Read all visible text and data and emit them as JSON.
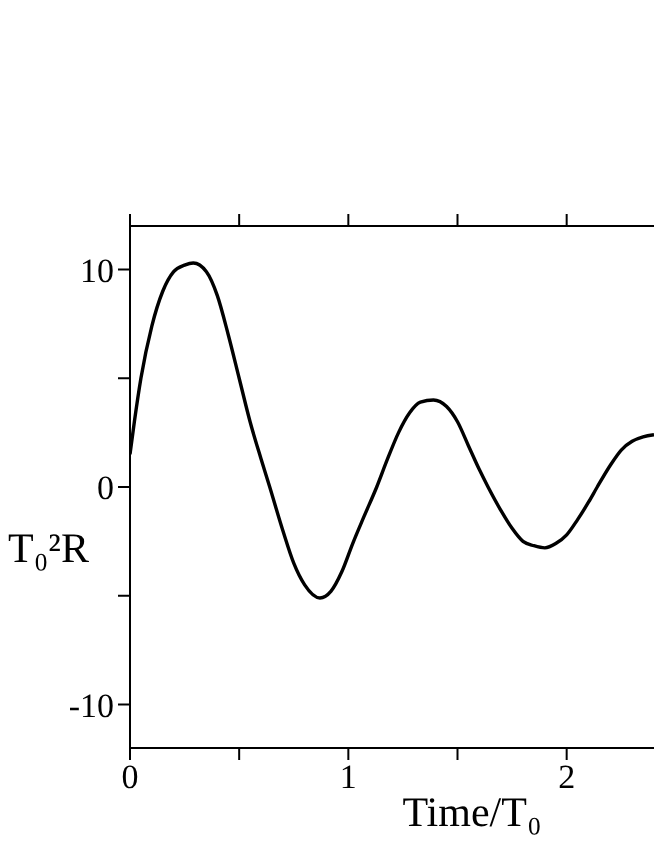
{
  "chart_data": {
    "type": "line",
    "xlabel": "Time/T₀",
    "ylabel": "T₀²R",
    "xlim": [
      0,
      2.4
    ],
    "ylim": [
      -12,
      12
    ],
    "xticks": [
      0,
      {
        "value": 0.5,
        "label": null
      },
      1,
      {
        "value": 1.5,
        "label": null
      },
      2
    ],
    "yticks": [
      -10,
      {
        "value": -5,
        "label": null
      },
      0,
      {
        "value": 5,
        "label": null
      },
      10
    ],
    "grid": false,
    "legend": false,
    "marker": "none",
    "line_style": "solid",
    "x": [
      0,
      0.02,
      0.05,
      0.1,
      0.15,
      0.2,
      0.25,
      0.29,
      0.35,
      0.4,
      0.45,
      0.5,
      0.55,
      0.6,
      0.64,
      0.7,
      0.75,
      0.8,
      0.87,
      0.92,
      0.97,
      1.02,
      1.07,
      1.13,
      1.18,
      1.23,
      1.28,
      1.33,
      1.39,
      1.45,
      1.5,
      1.55,
      1.6,
      1.64,
      1.7,
      1.75,
      1.8,
      1.85,
      1.9,
      1.95,
      2.0,
      2.05,
      2.1,
      2.14,
      2.2,
      2.25,
      2.3,
      2.35,
      2.4
    ],
    "series": [
      {
        "color": "#000000",
        "values": [
          1.5,
          3.0,
          5.0,
          7.4,
          9.0,
          9.9,
          10.2,
          10.3,
          9.9,
          8.8,
          7.0,
          5.0,
          3.0,
          1.3,
          0,
          -2.0,
          -3.5,
          -4.5,
          -5.1,
          -4.8,
          -3.9,
          -2.6,
          -1.4,
          0,
          1.3,
          2.5,
          3.4,
          3.9,
          4.0,
          3.7,
          3.0,
          1.9,
          0.8,
          0,
          -1.1,
          -1.9,
          -2.5,
          -2.7,
          -2.8,
          -2.6,
          -2.2,
          -1.5,
          -0.7,
          0,
          1.0,
          1.7,
          2.1,
          2.3,
          2.4
        ]
      }
    ]
  }
}
